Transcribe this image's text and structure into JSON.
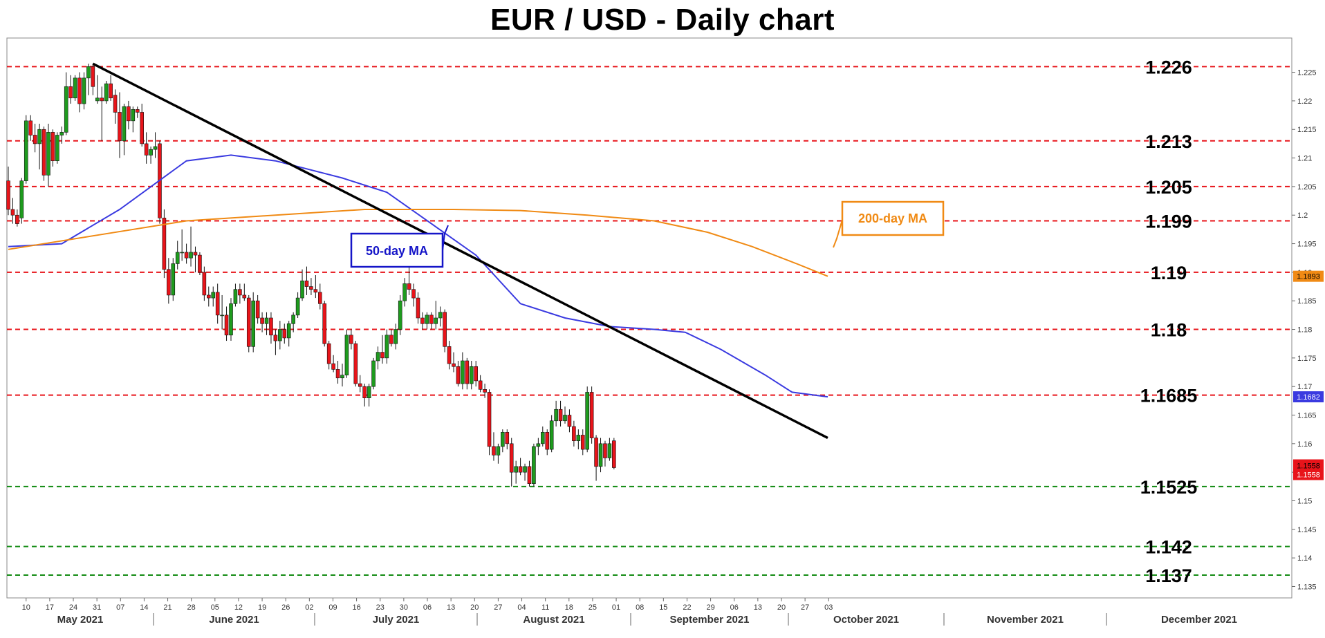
{
  "chart_data": {
    "type": "candlestick",
    "title": "EUR / USD - Daily chart",
    "ylim": [
      1.133,
      1.231
    ],
    "y_ticks": [
      "1.135",
      "1.14",
      "1.145",
      "1.15",
      "1.155",
      "1.16",
      "1.165",
      "1.17",
      "1.175",
      "1.18",
      "1.185",
      "1.19",
      "1.195",
      "1.2",
      "1.205",
      "1.21",
      "1.215",
      "1.22",
      "1.225"
    ],
    "x_day_labels": [
      "10",
      "17",
      "24",
      "31",
      "07",
      "14",
      "21",
      "28",
      "05",
      "12",
      "19",
      "26",
      "02",
      "09",
      "16",
      "23",
      "30",
      "06",
      "13",
      "20",
      "27",
      "04",
      "11",
      "18",
      "25",
      "01",
      "08",
      "15",
      "22",
      "29",
      "06",
      "13",
      "20",
      "27",
      "03"
    ],
    "month_labels": [
      "May 2021",
      "June 2021",
      "July 2021",
      "August 2021",
      "September 2021",
      "October 2021",
      "November 2021",
      "December 2021"
    ],
    "levels": [
      {
        "label": "1.226",
        "value": 1.226,
        "color": "#e8141a"
      },
      {
        "label": "1.213",
        "value": 1.213,
        "color": "#e8141a"
      },
      {
        "label": "1.205",
        "value": 1.205,
        "color": "#e8141a"
      },
      {
        "label": "1.199",
        "value": 1.199,
        "color": "#e8141a"
      },
      {
        "label": "1.19",
        "value": 1.19,
        "color": "#e8141a"
      },
      {
        "label": "1.18",
        "value": 1.18,
        "color": "#e8141a"
      },
      {
        "label": "1.1685",
        "value": 1.1685,
        "color": "#e8141a"
      },
      {
        "label": "1.1525",
        "value": 1.1525,
        "color": "#118a11"
      },
      {
        "label": "1.142",
        "value": 1.142,
        "color": "#118a11"
      },
      {
        "label": "1.137",
        "value": 1.137,
        "color": "#118a11"
      }
    ],
    "series": [
      {
        "name": "50-day MA",
        "color": "#3a3ae0",
        "last_value": "1.1682",
        "points": [
          [
            0,
            1.1945
          ],
          [
            12,
            1.195
          ],
          [
            25,
            1.201
          ],
          [
            40,
            1.2095
          ],
          [
            50,
            1.2105
          ],
          [
            60,
            1.2095
          ],
          [
            75,
            1.2065
          ],
          [
            85,
            1.204
          ],
          [
            95,
            1.1985
          ],
          [
            105,
            1.193
          ],
          [
            115,
            1.1845
          ],
          [
            125,
            1.182
          ],
          [
            135,
            1.1805
          ],
          [
            145,
            1.18
          ],
          [
            152,
            1.1795
          ],
          [
            160,
            1.1765
          ],
          [
            170,
            1.172
          ],
          [
            176,
            1.169
          ],
          [
            184,
            1.1682
          ]
        ]
      },
      {
        "name": "200-day MA",
        "color": "#f08a14",
        "last_value": "1.1893",
        "points": [
          [
            0,
            1.194
          ],
          [
            20,
            1.1965
          ],
          [
            40,
            1.199
          ],
          [
            60,
            1.2
          ],
          [
            80,
            1.201
          ],
          [
            100,
            1.201
          ],
          [
            115,
            1.2008
          ],
          [
            130,
            1.2
          ],
          [
            145,
            1.199
          ],
          [
            157,
            1.197
          ],
          [
            167,
            1.1945
          ],
          [
            177,
            1.1915
          ],
          [
            184,
            1.1893
          ]
        ]
      }
    ],
    "candles": [
      [
        0,
        1.206,
        1.2085,
        1.2,
        1.201
      ],
      [
        1,
        1.201,
        1.203,
        1.1985,
        1.2
      ],
      [
        2,
        1.2,
        1.201,
        1.198,
        1.1985
      ],
      [
        3,
        1.1995,
        1.2065,
        1.1985,
        1.206
      ],
      [
        4,
        1.206,
        1.2175,
        1.2055,
        1.2165
      ],
      [
        5,
        1.2165,
        1.2175,
        1.213,
        1.214
      ],
      [
        6,
        1.214,
        1.216,
        1.211,
        1.2125
      ],
      [
        7,
        1.2125,
        1.216,
        1.208,
        1.215
      ],
      [
        8,
        1.215,
        1.2155,
        1.206,
        1.207
      ],
      [
        9,
        1.207,
        1.216,
        1.205,
        1.2145
      ],
      [
        10,
        1.2145,
        1.215,
        1.2085,
        1.2095
      ],
      [
        11,
        1.2095,
        1.2145,
        1.209,
        1.214
      ],
      [
        12,
        1.214,
        1.2155,
        1.2125,
        1.2145
      ],
      [
        13,
        1.2145,
        1.225,
        1.214,
        1.2225
      ],
      [
        14,
        1.2225,
        1.2245,
        1.2195,
        1.2205
      ],
      [
        15,
        1.2205,
        1.2245,
        1.22,
        1.224
      ],
      [
        16,
        1.224,
        1.225,
        1.218,
        1.2195
      ],
      [
        17,
        1.2195,
        1.225,
        1.2185,
        1.224
      ],
      [
        18,
        1.224,
        1.2265,
        1.221,
        1.226
      ],
      [
        19,
        1.226,
        1.2265,
        1.221,
        1.2225
      ],
      [
        20,
        1.22,
        1.2245,
        1.2195,
        1.2205
      ],
      [
        21,
        1.2205,
        1.2225,
        1.213,
        1.22
      ],
      [
        22,
        1.22,
        1.2235,
        1.2195,
        1.223
      ],
      [
        23,
        1.223,
        1.2245,
        1.22,
        1.2205
      ],
      [
        24,
        1.221,
        1.222,
        1.216,
        1.218
      ],
      [
        25,
        1.218,
        1.2215,
        1.21,
        1.213
      ],
      [
        26,
        1.213,
        1.2195,
        1.2105,
        1.219
      ],
      [
        27,
        1.219,
        1.22,
        1.215,
        1.2165
      ],
      [
        28,
        1.2165,
        1.219,
        1.2145,
        1.2185
      ],
      [
        29,
        1.2185,
        1.219,
        1.217,
        1.218
      ],
      [
        30,
        1.218,
        1.2195,
        1.212,
        1.2125
      ],
      [
        31,
        1.2125,
        1.2145,
        1.209,
        1.2105
      ],
      [
        32,
        1.2105,
        1.212,
        1.209,
        1.2115
      ],
      [
        33,
        1.2115,
        1.2145,
        1.21,
        1.212
      ],
      [
        34,
        1.2125,
        1.213,
        1.1985,
        1.1995
      ],
      [
        35,
        1.1995,
        1.201,
        1.189,
        1.1905
      ],
      [
        36,
        1.1905,
        1.1925,
        1.1845,
        1.186
      ],
      [
        37,
        1.186,
        1.1925,
        1.185,
        1.1915
      ],
      [
        38,
        1.1915,
        1.1955,
        1.1905,
        1.1935
      ],
      [
        39,
        1.1935,
        1.1975,
        1.192,
        1.1935
      ],
      [
        40,
        1.1935,
        1.195,
        1.1915,
        1.1925
      ],
      [
        41,
        1.1925,
        1.198,
        1.191,
        1.1935
      ],
      [
        42,
        1.1935,
        1.1945,
        1.19,
        1.193
      ],
      [
        43,
        1.193,
        1.1935,
        1.1895,
        1.19
      ],
      [
        44,
        1.19,
        1.191,
        1.185,
        1.186
      ],
      [
        45,
        1.186,
        1.1875,
        1.184,
        1.1855
      ],
      [
        46,
        1.1855,
        1.1875,
        1.184,
        1.1865
      ],
      [
        47,
        1.1865,
        1.188,
        1.181,
        1.1825
      ],
      [
        48,
        1.1825,
        1.186,
        1.18,
        1.1825
      ],
      [
        49,
        1.1825,
        1.184,
        1.178,
        1.179
      ],
      [
        50,
        1.179,
        1.1855,
        1.178,
        1.1845
      ],
      [
        51,
        1.1845,
        1.188,
        1.184,
        1.187
      ],
      [
        52,
        1.187,
        1.188,
        1.1845,
        1.186
      ],
      [
        53,
        1.186,
        1.188,
        1.185,
        1.1855
      ],
      [
        54,
        1.1855,
        1.186,
        1.176,
        1.177
      ],
      [
        55,
        1.177,
        1.1865,
        1.176,
        1.185
      ],
      [
        56,
        1.185,
        1.186,
        1.181,
        1.182
      ],
      [
        57,
        1.182,
        1.183,
        1.1795,
        1.181
      ],
      [
        58,
        1.181,
        1.183,
        1.179,
        1.182
      ],
      [
        59,
        1.182,
        1.183,
        1.1775,
        1.179
      ],
      [
        60,
        1.179,
        1.18,
        1.1755,
        1.178
      ],
      [
        61,
        1.178,
        1.1815,
        1.1765,
        1.18
      ],
      [
        62,
        1.18,
        1.181,
        1.1775,
        1.1785
      ],
      [
        63,
        1.1785,
        1.1815,
        1.177,
        1.181
      ],
      [
        64,
        1.181,
        1.183,
        1.1795,
        1.1825
      ],
      [
        65,
        1.1825,
        1.1865,
        1.182,
        1.1855
      ],
      [
        66,
        1.1855,
        1.1905,
        1.185,
        1.1885
      ],
      [
        67,
        1.1885,
        1.191,
        1.186,
        1.1875
      ],
      [
        68,
        1.1875,
        1.189,
        1.186,
        1.187
      ],
      [
        69,
        1.187,
        1.1895,
        1.1855,
        1.1865
      ],
      [
        70,
        1.1865,
        1.188,
        1.1835,
        1.1845
      ],
      [
        71,
        1.1845,
        1.185,
        1.177,
        1.1775
      ],
      [
        72,
        1.1775,
        1.178,
        1.173,
        1.174
      ],
      [
        73,
        1.174,
        1.1755,
        1.1725,
        1.173
      ],
      [
        74,
        1.173,
        1.1745,
        1.1705,
        1.1715
      ],
      [
        75,
        1.1715,
        1.174,
        1.17,
        1.172
      ],
      [
        76,
        1.172,
        1.18,
        1.1715,
        1.179
      ],
      [
        77,
        1.179,
        1.18,
        1.1765,
        1.1775
      ],
      [
        78,
        1.1775,
        1.178,
        1.17,
        1.1705
      ],
      [
        79,
        1.1705,
        1.172,
        1.169,
        1.17
      ],
      [
        80,
        1.17,
        1.1705,
        1.1665,
        1.168
      ],
      [
        81,
        1.168,
        1.1705,
        1.1665,
        1.17
      ],
      [
        82,
        1.17,
        1.175,
        1.1695,
        1.1745
      ],
      [
        83,
        1.1745,
        1.177,
        1.173,
        1.176
      ],
      [
        84,
        1.176,
        1.179,
        1.174,
        1.175
      ],
      [
        85,
        1.175,
        1.18,
        1.174,
        1.179
      ],
      [
        86,
        1.179,
        1.18,
        1.177,
        1.1775
      ],
      [
        87,
        1.1775,
        1.181,
        1.1765,
        1.18
      ],
      [
        88,
        1.18,
        1.186,
        1.179,
        1.185
      ],
      [
        89,
        1.185,
        1.189,
        1.184,
        1.188
      ],
      [
        90,
        1.188,
        1.191,
        1.186,
        1.187
      ],
      [
        91,
        1.187,
        1.188,
        1.184,
        1.1855
      ],
      [
        92,
        1.1855,
        1.1865,
        1.181,
        1.182
      ],
      [
        93,
        1.182,
        1.183,
        1.18,
        1.181
      ],
      [
        94,
        1.181,
        1.183,
        1.18,
        1.1825
      ],
      [
        95,
        1.1825,
        1.183,
        1.18,
        1.181
      ],
      [
        96,
        1.181,
        1.185,
        1.18,
        1.182
      ],
      [
        97,
        1.182,
        1.184,
        1.1805,
        1.183
      ],
      [
        98,
        1.183,
        1.1835,
        1.176,
        1.177
      ],
      [
        99,
        1.177,
        1.178,
        1.173,
        1.174
      ],
      [
        100,
        1.174,
        1.176,
        1.1725,
        1.1735
      ],
      [
        101,
        1.1735,
        1.1745,
        1.17,
        1.1705
      ],
      [
        102,
        1.1705,
        1.176,
        1.1695,
        1.1745
      ],
      [
        103,
        1.1745,
        1.175,
        1.1695,
        1.1705
      ],
      [
        104,
        1.1705,
        1.1745,
        1.1695,
        1.1735
      ],
      [
        105,
        1.1735,
        1.1745,
        1.17,
        1.171
      ],
      [
        106,
        1.171,
        1.172,
        1.169,
        1.1695
      ],
      [
        107,
        1.1695,
        1.1705,
        1.168,
        1.169
      ],
      [
        108,
        1.169,
        1.1695,
        1.158,
        1.1595
      ],
      [
        109,
        1.1595,
        1.162,
        1.157,
        1.158
      ],
      [
        110,
        1.158,
        1.16,
        1.1565,
        1.1595
      ],
      [
        111,
        1.1595,
        1.1625,
        1.1585,
        1.162
      ],
      [
        112,
        1.162,
        1.1625,
        1.159,
        1.16
      ],
      [
        113,
        1.16,
        1.161,
        1.1525,
        1.155
      ],
      [
        114,
        1.155,
        1.157,
        1.153,
        1.156
      ],
      [
        115,
        1.156,
        1.1575,
        1.1545,
        1.155
      ],
      [
        116,
        1.155,
        1.1565,
        1.1535,
        1.156
      ],
      [
        117,
        1.156,
        1.157,
        1.1525,
        1.153
      ],
      [
        118,
        1.153,
        1.16,
        1.1525,
        1.1595
      ],
      [
        119,
        1.1595,
        1.161,
        1.158,
        1.16
      ],
      [
        120,
        1.16,
        1.163,
        1.1595,
        1.162
      ],
      [
        121,
        1.162,
        1.1625,
        1.158,
        1.159
      ],
      [
        122,
        1.159,
        1.165,
        1.1585,
        1.164
      ],
      [
        123,
        1.164,
        1.1675,
        1.163,
        1.166
      ],
      [
        124,
        1.166,
        1.1675,
        1.163,
        1.164
      ],
      [
        125,
        1.164,
        1.1665,
        1.1635,
        1.165
      ],
      [
        126,
        1.165,
        1.166,
        1.162,
        1.163
      ],
      [
        127,
        1.163,
        1.164,
        1.1595,
        1.1605
      ],
      [
        128,
        1.1605,
        1.1625,
        1.159,
        1.1615
      ],
      [
        129,
        1.1615,
        1.1625,
        1.158,
        1.159
      ],
      [
        130,
        1.159,
        1.17,
        1.1585,
        1.169
      ],
      [
        131,
        1.169,
        1.17,
        1.16,
        1.161
      ],
      [
        132,
        1.161,
        1.1615,
        1.1535,
        1.156
      ],
      [
        133,
        1.156,
        1.161,
        1.155,
        1.16
      ],
      [
        134,
        1.16,
        1.1605,
        1.156,
        1.1575
      ],
      [
        135,
        1.1575,
        1.161,
        1.157,
        1.16
      ],
      [
        136,
        1.1605,
        1.161,
        1.1555,
        1.1558
      ]
    ],
    "last_price": "1.1558",
    "last_price_2": "1.1558",
    "annotations": [
      {
        "text": "50-day MA",
        "color": "#1515c8"
      },
      {
        "text": "200-day MA",
        "color": "#f08a14"
      }
    ],
    "trendline": {
      "from": [
        19,
        1.2265
      ],
      "to": [
        184,
        1.161
      ]
    }
  }
}
